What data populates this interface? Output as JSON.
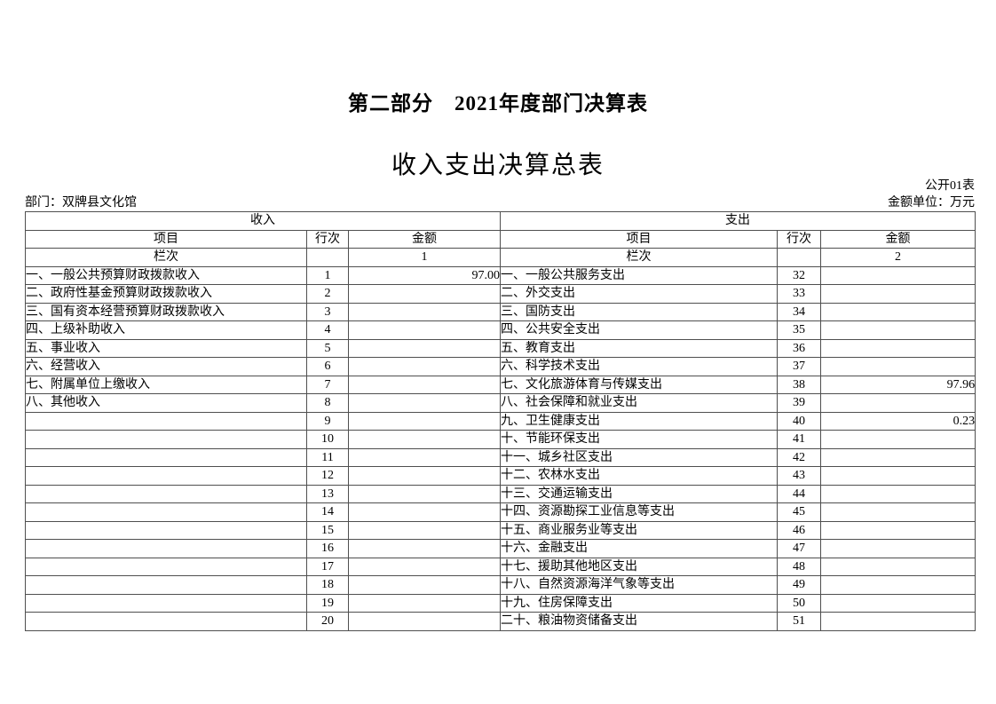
{
  "page": {
    "title": "第二部分　2021年度部门决算表",
    "subtitle": "收入支出决算总表",
    "table_code": "公开01表",
    "department": "部门：双牌县文化馆",
    "unit": "金额单位：万元"
  },
  "table": {
    "income_header": "收入",
    "expense_header": "支出",
    "col_item": "项目",
    "col_rowno": "行次",
    "col_amount": "金额",
    "lanci_label": "栏次",
    "income_col_no": "1",
    "expense_col_no": "2",
    "income_rows": [
      {
        "item": "一、一般公共预算财政拨款收入",
        "rowno": "1",
        "amount": "97.00"
      },
      {
        "item": "二、政府性基金预算财政拨款收入",
        "rowno": "2",
        "amount": ""
      },
      {
        "item": "三、国有资本经营预算财政拨款收入",
        "rowno": "3",
        "amount": ""
      },
      {
        "item": "四、上级补助收入",
        "rowno": "4",
        "amount": ""
      },
      {
        "item": "五、事业收入",
        "rowno": "5",
        "amount": ""
      },
      {
        "item": "六、经营收入",
        "rowno": "6",
        "amount": ""
      },
      {
        "item": "七、附属单位上缴收入",
        "rowno": "7",
        "amount": ""
      },
      {
        "item": "八、其他收入",
        "rowno": "8",
        "amount": ""
      },
      {
        "item": "",
        "rowno": "9",
        "amount": ""
      },
      {
        "item": "",
        "rowno": "10",
        "amount": ""
      },
      {
        "item": "",
        "rowno": "11",
        "amount": ""
      },
      {
        "item": "",
        "rowno": "12",
        "amount": ""
      },
      {
        "item": "",
        "rowno": "13",
        "amount": ""
      },
      {
        "item": "",
        "rowno": "14",
        "amount": ""
      },
      {
        "item": "",
        "rowno": "15",
        "amount": ""
      },
      {
        "item": "",
        "rowno": "16",
        "amount": ""
      },
      {
        "item": "",
        "rowno": "17",
        "amount": ""
      },
      {
        "item": "",
        "rowno": "18",
        "amount": ""
      },
      {
        "item": "",
        "rowno": "19",
        "amount": ""
      },
      {
        "item": "",
        "rowno": "20",
        "amount": ""
      }
    ],
    "expense_rows": [
      {
        "item": "一、一般公共服务支出",
        "rowno": "32",
        "amount": ""
      },
      {
        "item": "二、外交支出",
        "rowno": "33",
        "amount": ""
      },
      {
        "item": "三、国防支出",
        "rowno": "34",
        "amount": ""
      },
      {
        "item": "四、公共安全支出",
        "rowno": "35",
        "amount": ""
      },
      {
        "item": "五、教育支出",
        "rowno": "36",
        "amount": ""
      },
      {
        "item": "六、科学技术支出",
        "rowno": "37",
        "amount": ""
      },
      {
        "item": "七、文化旅游体育与传媒支出",
        "rowno": "38",
        "amount": "97.96"
      },
      {
        "item": "八、社会保障和就业支出",
        "rowno": "39",
        "amount": ""
      },
      {
        "item": "九、卫生健康支出",
        "rowno": "40",
        "amount": "0.23"
      },
      {
        "item": "十、节能环保支出",
        "rowno": "41",
        "amount": ""
      },
      {
        "item": "十一、城乡社区支出",
        "rowno": "42",
        "amount": ""
      },
      {
        "item": "十二、农林水支出",
        "rowno": "43",
        "amount": ""
      },
      {
        "item": "十三、交通运输支出",
        "rowno": "44",
        "amount": ""
      },
      {
        "item": "十四、资源勘探工业信息等支出",
        "rowno": "45",
        "amount": ""
      },
      {
        "item": "十五、商业服务业等支出",
        "rowno": "46",
        "amount": ""
      },
      {
        "item": "十六、金融支出",
        "rowno": "47",
        "amount": ""
      },
      {
        "item": "十七、援助其他地区支出",
        "rowno": "48",
        "amount": ""
      },
      {
        "item": "十八、自然资源海洋气象等支出",
        "rowno": "49",
        "amount": ""
      },
      {
        "item": "十九、住房保障支出",
        "rowno": "50",
        "amount": ""
      },
      {
        "item": "二十、粮油物资储备支出",
        "rowno": "51",
        "amount": ""
      }
    ]
  }
}
